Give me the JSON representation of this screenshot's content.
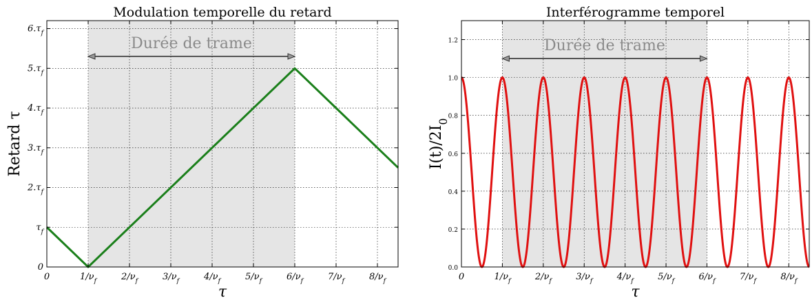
{
  "chart_data": [
    {
      "type": "line",
      "title": "Modulation temporelle du retard",
      "xlabel": "τ",
      "ylabel": "Retard τ",
      "x_tick_labels": [
        "0",
        "1/ν_f",
        "2/ν_f",
        "3/ν_f",
        "4/ν_f",
        "5/ν_f",
        "6/ν_f",
        "7/ν_f",
        "8/ν_f"
      ],
      "x_ticks": [
        0,
        1,
        2,
        3,
        4,
        5,
        6,
        7,
        8
      ],
      "y_tick_labels": [
        "0",
        "τ_f",
        "2.τ_f",
        "3.τ_f",
        "4.τ_f",
        "5.τ_f",
        "6.τ_f"
      ],
      "y_ticks": [
        0,
        1,
        2,
        3,
        4,
        5,
        6
      ],
      "xlim": [
        0,
        8.5
      ],
      "ylim": [
        0,
        6.2
      ],
      "grid": true,
      "series": [
        {
          "color": "#1a7f1a",
          "x": [
            0,
            1,
            6,
            8.5
          ],
          "y": [
            1,
            0,
            5,
            2.5
          ]
        }
      ],
      "shaded_region": {
        "x": [
          1,
          6
        ],
        "color": "#e5e5e5"
      },
      "annotation": {
        "text": "Durée de trame",
        "arrow_x": [
          1,
          6
        ],
        "arrow_y": 5.3,
        "text_color": "#8a8a8a"
      }
    },
    {
      "type": "line",
      "title": "Interférogramme temporel",
      "xlabel": "τ",
      "ylabel": "I(t)/2I_0",
      "x_tick_labels": [
        "0",
        "1/ν_f",
        "2/ν_f",
        "3/ν_f",
        "4/ν_f",
        "5/ν_f",
        "6/ν_f",
        "7/ν_f",
        "8/ν_f"
      ],
      "x_ticks": [
        0,
        1,
        2,
        3,
        4,
        5,
        6,
        7,
        8
      ],
      "y_tick_labels": [
        "0.0",
        "0.2",
        "0.4",
        "0.6",
        "0.8",
        "1.0",
        "1.2"
      ],
      "y_ticks": [
        0,
        0.2,
        0.4,
        0.6,
        0.8,
        1.0,
        1.2
      ],
      "xlim": [
        0,
        8.5
      ],
      "ylim": [
        0,
        1.3
      ],
      "grid": true,
      "series": [
        {
          "color": "#e01010",
          "function": "cos²(πx)",
          "x_range": [
            0,
            8.5
          ]
        }
      ],
      "shaded_region": {
        "x": [
          1,
          6
        ],
        "color": "#e5e5e5"
      },
      "annotation": {
        "text": "Durée de trame",
        "arrow_x": [
          1,
          6
        ],
        "arrow_y": 1.1,
        "text_color": "#8a8a8a"
      }
    }
  ]
}
